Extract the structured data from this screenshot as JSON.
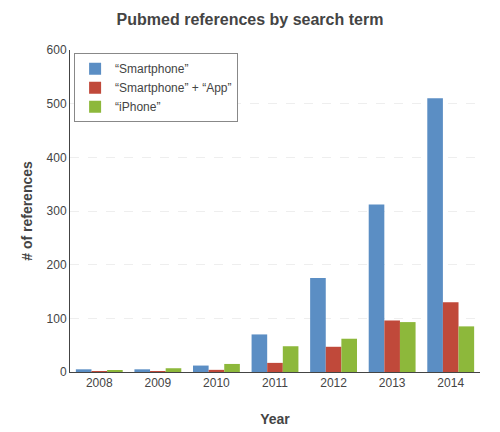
{
  "chart_data": {
    "type": "bar",
    "title": "Pubmed references by search term",
    "xlabel": "Year",
    "ylabel": "# of references",
    "categories": [
      "2008",
      "2009",
      "2010",
      "2011",
      "2012",
      "2013",
      "2014"
    ],
    "series": [
      {
        "name": "“Smartphone”",
        "color": "#5B8EC4",
        "values": [
          5,
          5,
          12,
          70,
          175,
          312,
          510
        ]
      },
      {
        "name": "“Smartphone” + “App”",
        "color": "#C0493A",
        "values": [
          1,
          1,
          4,
          17,
          47,
          96,
          130
        ]
      },
      {
        "name": "“iPhone”",
        "color": "#8DB83B",
        "values": [
          3,
          7,
          15,
          48,
          62,
          93,
          85
        ]
      }
    ],
    "ylim": [
      0,
      600
    ],
    "yticks": [
      0,
      100,
      200,
      300,
      400,
      500,
      600
    ],
    "grid": true,
    "legend": "upper left"
  }
}
